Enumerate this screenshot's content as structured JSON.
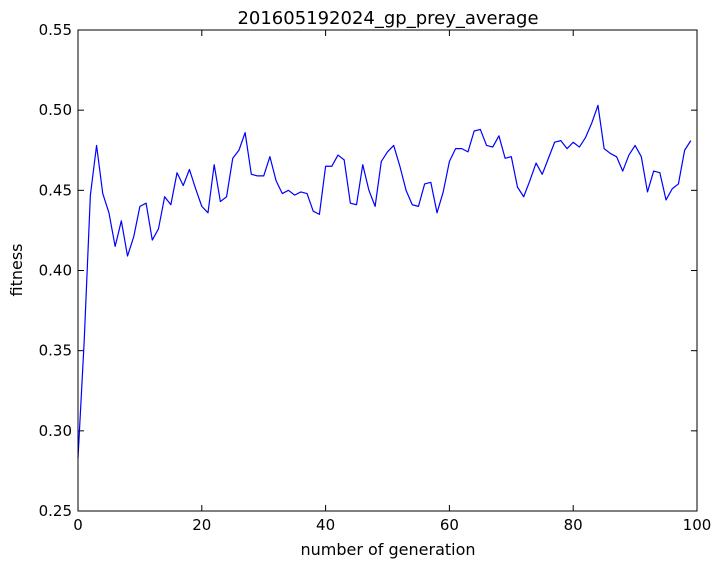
{
  "chart_data": {
    "type": "line",
    "title": "201605192024_gp_prey_average",
    "xlabel": "number of generation",
    "ylabel": "fitness",
    "xlim": [
      0,
      100
    ],
    "ylim": [
      0.25,
      0.55
    ],
    "xticks": [
      0,
      20,
      40,
      60,
      80,
      100
    ],
    "xtick_labels": [
      "0",
      "20",
      "40",
      "60",
      "80",
      "100"
    ],
    "yticks": [
      0.25,
      0.3,
      0.35,
      0.4,
      0.45,
      0.5,
      0.55
    ],
    "ytick_labels": [
      "0.25",
      "0.30",
      "0.35",
      "0.40",
      "0.45",
      "0.50",
      "0.55"
    ],
    "grid": false,
    "series": [
      {
        "color": "#0000ff",
        "x": [
          0,
          1,
          2,
          3,
          4,
          5,
          6,
          7,
          8,
          9,
          10,
          11,
          12,
          13,
          14,
          15,
          16,
          17,
          18,
          19,
          20,
          21,
          22,
          23,
          24,
          25,
          26,
          27,
          28,
          29,
          30,
          31,
          32,
          33,
          34,
          35,
          36,
          37,
          38,
          39,
          40,
          41,
          42,
          43,
          44,
          45,
          46,
          47,
          48,
          49,
          50,
          51,
          52,
          53,
          54,
          55,
          56,
          57,
          58,
          59,
          60,
          61,
          62,
          63,
          64,
          65,
          66,
          67,
          68,
          69,
          70,
          71,
          72,
          73,
          74,
          75,
          76,
          77,
          78,
          79,
          80,
          81,
          82,
          83,
          84,
          85,
          86,
          87,
          88,
          89,
          90,
          91,
          92,
          93,
          94,
          95,
          96,
          97,
          98,
          99
        ],
        "y": [
          0.283,
          0.356,
          0.447,
          0.478,
          0.448,
          0.436,
          0.415,
          0.431,
          0.409,
          0.421,
          0.44,
          0.442,
          0.419,
          0.426,
          0.446,
          0.441,
          0.461,
          0.453,
          0.463,
          0.451,
          0.44,
          0.436,
          0.466,
          0.443,
          0.446,
          0.47,
          0.475,
          0.486,
          0.46,
          0.459,
          0.459,
          0.471,
          0.456,
          0.448,
          0.45,
          0.447,
          0.449,
          0.448,
          0.437,
          0.435,
          0.465,
          0.465,
          0.472,
          0.469,
          0.442,
          0.441,
          0.466,
          0.45,
          0.44,
          0.468,
          0.474,
          0.478,
          0.465,
          0.45,
          0.441,
          0.44,
          0.454,
          0.455,
          0.436,
          0.449,
          0.468,
          0.476,
          0.476,
          0.474,
          0.487,
          0.488,
          0.478,
          0.477,
          0.484,
          0.47,
          0.471,
          0.452,
          0.446,
          0.456,
          0.467,
          0.46,
          0.47,
          0.48,
          0.481,
          0.476,
          0.48,
          0.477,
          0.483,
          0.492,
          0.503,
          0.476,
          0.473,
          0.471,
          0.462,
          0.472,
          0.478,
          0.471,
          0.449,
          0.462,
          0.461,
          0.444,
          0.451,
          0.454,
          0.475,
          0.481
        ]
      }
    ]
  }
}
